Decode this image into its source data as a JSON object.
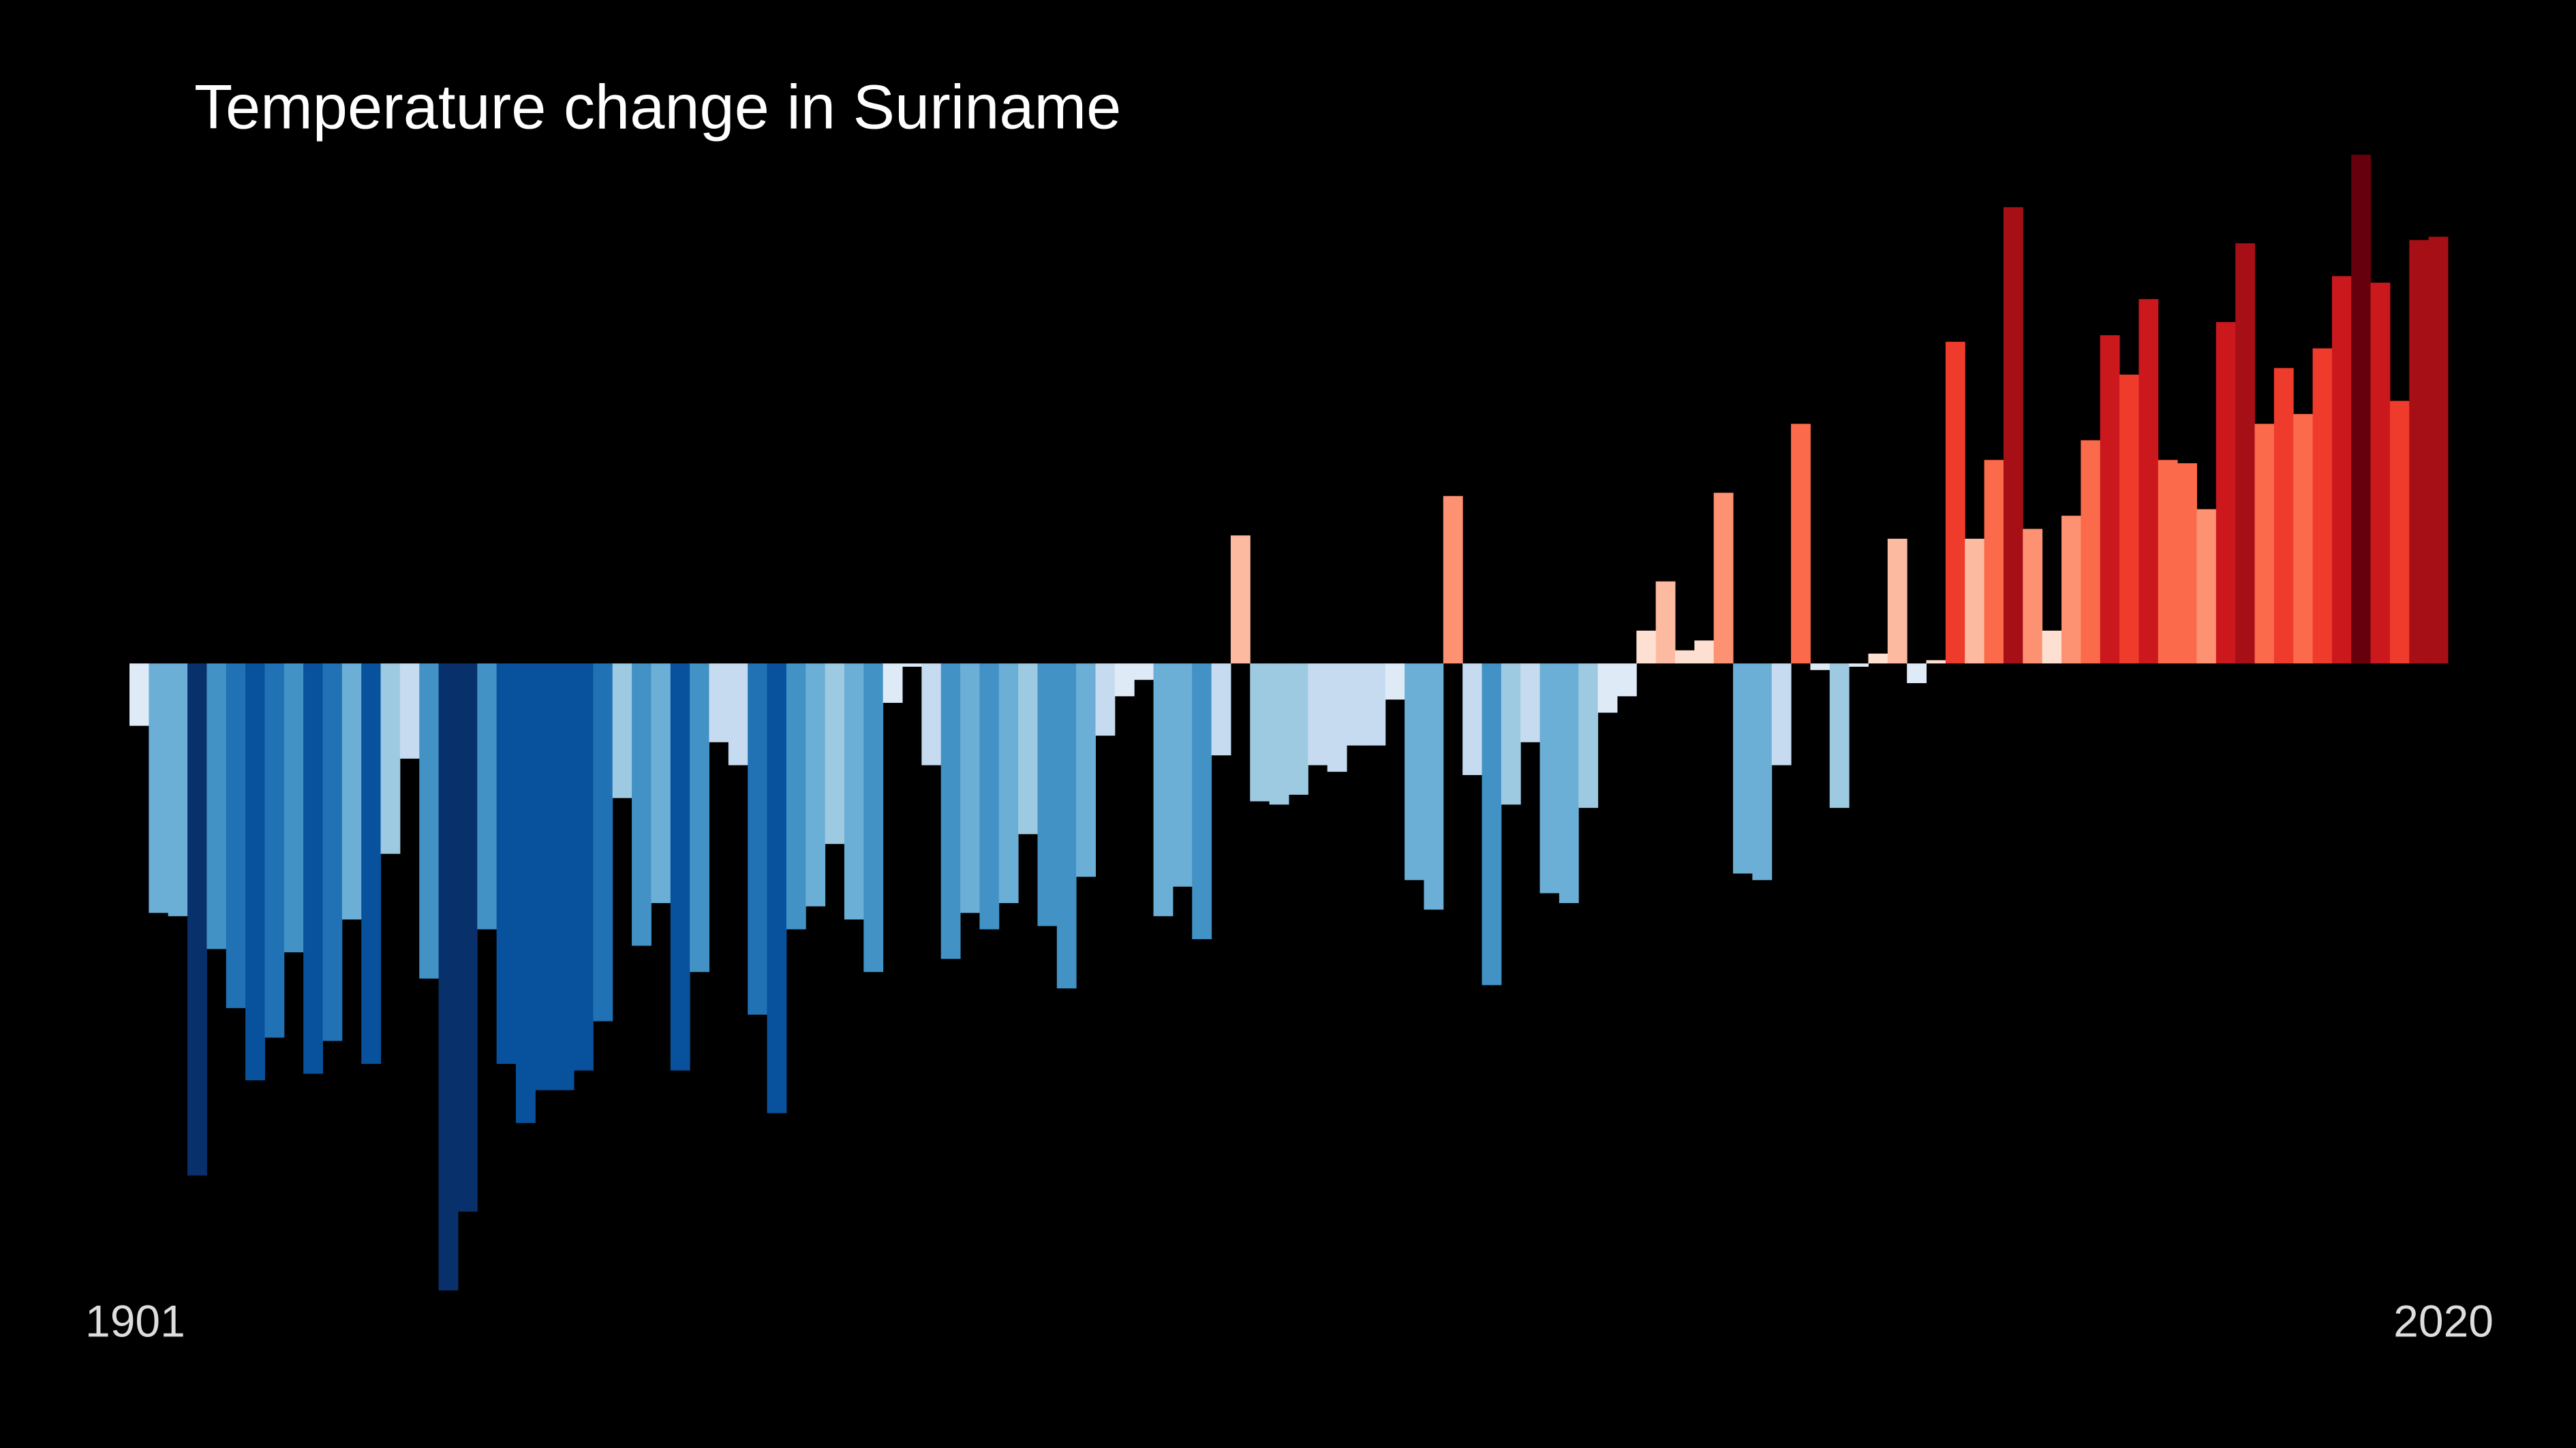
{
  "chart_data": {
    "type": "bar",
    "title": "Temperature change in Suriname",
    "categories": [
      "1901",
      null,
      null,
      null,
      null,
      null,
      null,
      null,
      null,
      null,
      null,
      null,
      null,
      null,
      null,
      null,
      null,
      null,
      null,
      null,
      null,
      null,
      null,
      null,
      null,
      null,
      null,
      null,
      null,
      null,
      null,
      null,
      null,
      null,
      null,
      null,
      null,
      null,
      null,
      null,
      null,
      null,
      null,
      null,
      null,
      null,
      null,
      null,
      null,
      null,
      null,
      null,
      null,
      null,
      null,
      null,
      null,
      null,
      null,
      null,
      null,
      null,
      null,
      null,
      null,
      null,
      null,
      null,
      null,
      null,
      null,
      null,
      null,
      null,
      null,
      null,
      null,
      null,
      null,
      null,
      null,
      null,
      null,
      null,
      null,
      null,
      null,
      null,
      null,
      null,
      null,
      null,
      null,
      null,
      null,
      null,
      null,
      null,
      null,
      null,
      null,
      null,
      null,
      null,
      null,
      null,
      null,
      null,
      null,
      null,
      null,
      null,
      null,
      null,
      null,
      null,
      null,
      null,
      null,
      "2020"
    ],
    "values": [
      -0.19,
      -0.76,
      -0.77,
      -1.56,
      -0.87,
      -1.05,
      -1.27,
      -1.14,
      -0.88,
      -1.25,
      -1.15,
      -0.78,
      -1.22,
      -0.58,
      -0.29,
      -0.96,
      -1.91,
      -1.67,
      -0.81,
      -1.22,
      -1.4,
      -1.3,
      -1.3,
      -1.24,
      -1.09,
      -0.41,
      -0.86,
      -0.73,
      -1.24,
      -0.94,
      -0.24,
      -0.31,
      -1.07,
      -1.37,
      -0.81,
      -0.74,
      -0.55,
      -0.78,
      -0.94,
      -0.12,
      -0.01,
      -0.31,
      -0.9,
      -0.76,
      -0.81,
      -0.73,
      -0.52,
      -0.8,
      -0.99,
      -0.65,
      -0.22,
      -0.1,
      -0.05,
      -0.77,
      -0.68,
      -0.84,
      -0.28,
      0.39,
      -0.42,
      -0.43,
      -0.4,
      -0.31,
      -0.33,
      -0.25,
      -0.25,
      -0.11,
      -0.66,
      -0.75,
      0.51,
      -0.34,
      -0.98,
      -0.43,
      -0.24,
      -0.7,
      -0.73,
      -0.44,
      -0.15,
      -0.1,
      0.1,
      0.25,
      0.04,
      0.07,
      0.52,
      -0.64,
      -0.66,
      -0.31,
      0.73,
      -0.02,
      -0.44,
      -0.01,
      0.03,
      0.38,
      -0.06,
      0.01,
      0.98,
      0.38,
      0.62,
      1.39,
      0.41,
      0.1,
      0.45,
      0.68,
      1.0,
      0.88,
      1.11,
      0.62,
      0.61,
      0.47,
      1.04,
      1.28,
      0.73,
      0.9,
      0.76,
      0.96,
      1.18,
      1.55,
      1.16,
      0.8,
      1.29,
      1.3
    ],
    "ylim": [
      -2,
      1.6
    ],
    "negative_colors": [
      "#deebf7",
      "#c6dbef",
      "#9ecae1",
      "#6baed6",
      "#4292c6",
      "#2171b5",
      "#08519c",
      "#08306b"
    ],
    "positive_colors": [
      "#fee0d2",
      "#fcbba1",
      "#fc9272",
      "#fb6a4a",
      "#ef3b2c",
      "#cb181d",
      "#a50f15",
      "#67000d"
    ],
    "background": "#000000"
  }
}
